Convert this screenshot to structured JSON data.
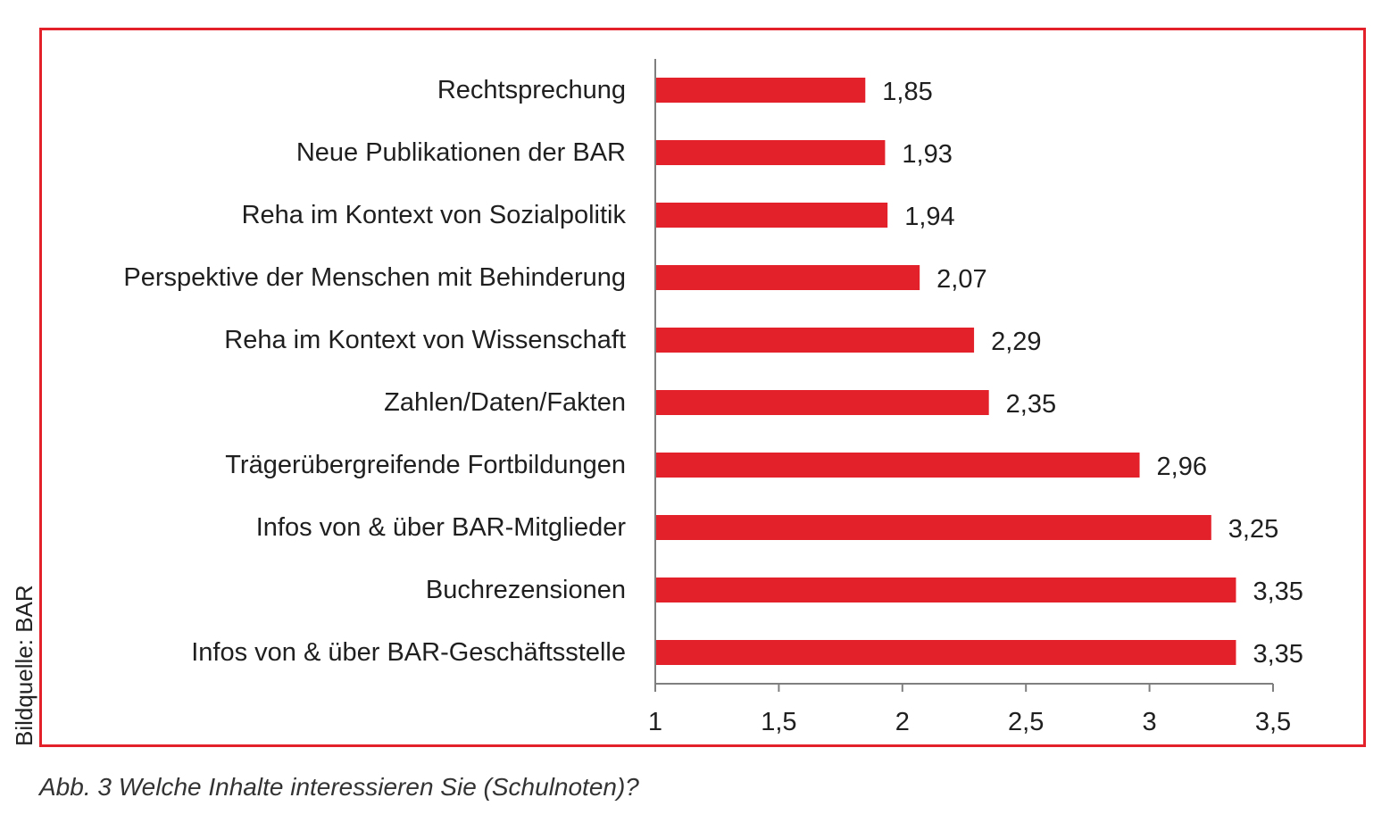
{
  "chart_data": {
    "type": "bar",
    "orientation": "horizontal",
    "categories": [
      "Rechtsprechung",
      "Neue Publikationen der BAR",
      "Reha im Kontext von Sozialpolitik",
      "Perspektive der Menschen mit Behinderung",
      "Reha im Kontext von Wissenschaft",
      "Zahlen/Daten/Fakten",
      "Trägerübergreifende Fortbildungen",
      "Infos von & über BAR-Mitglieder",
      "Buchrezensionen",
      "Infos von & über BAR-Geschäftsstelle"
    ],
    "values": [
      1.85,
      1.93,
      1.94,
      2.07,
      2.29,
      2.35,
      2.96,
      3.25,
      3.35,
      3.35
    ],
    "value_labels": [
      "1,85",
      "1,93",
      "1,94",
      "2,07",
      "2,29",
      "2,35",
      "2,96",
      "3,25",
      "3,35",
      "3,35"
    ],
    "xlim": [
      1,
      3.5
    ],
    "x_ticks": [
      1,
      1.5,
      2,
      2.5,
      3,
      3.5
    ],
    "x_tick_labels": [
      "1",
      "1,5",
      "2",
      "2,5",
      "3",
      "3,5"
    ],
    "xlabel": "",
    "ylabel": "",
    "grid": false,
    "bar_color": "#e3212b",
    "axis_color": "#7f7f7f"
  },
  "source_credit": "Bildquelle: BAR",
  "caption": "Abb. 3 Welche Inhalte interessieren Sie (Schulnoten)?",
  "frame_color": "#e3212b"
}
